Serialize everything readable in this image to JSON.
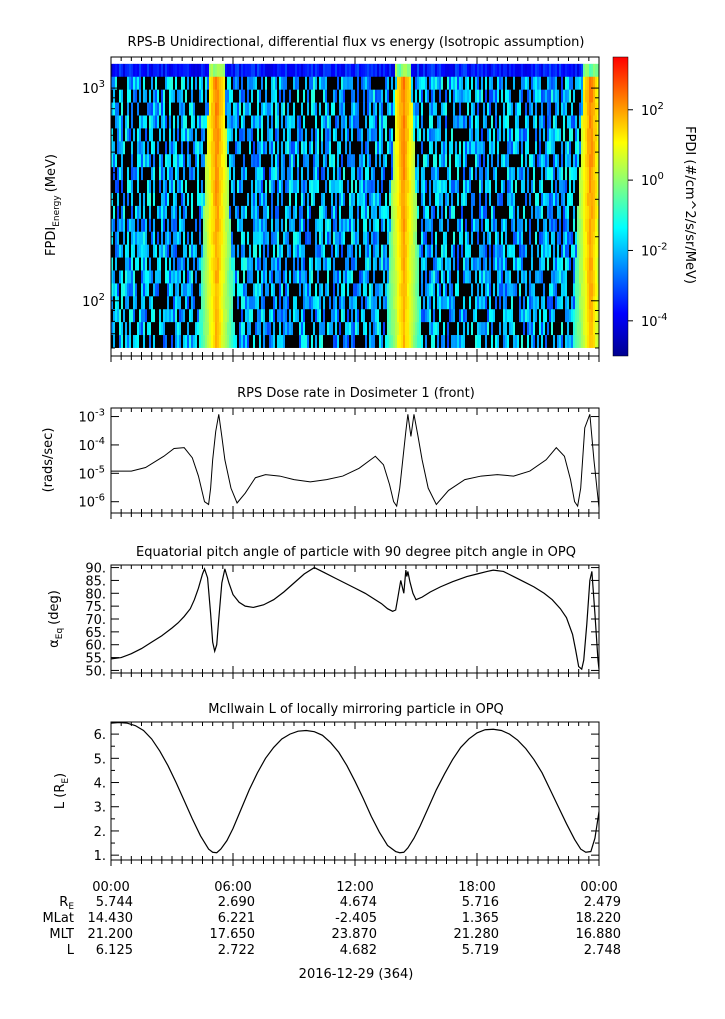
{
  "chart_data": [
    {
      "type": "heatmap",
      "title": "RPS-B  Unidirectional, differential flux vs energy (Isotropic assumption)",
      "ylabel_main": "FPDI",
      "ylabel_sub": "Energy",
      "ylabel_unit": "(MeV)",
      "ylim": [
        55,
        1400
      ],
      "yscale": "log",
      "yticks": [
        {
          "base": "10",
          "exp": "3",
          "value": 1000
        },
        {
          "base": "10",
          "exp": "2",
          "value": 100
        }
      ],
      "xlim_hours": [
        0,
        24
      ],
      "bright_bands_hours": [
        5.2,
        14.4,
        23.6
      ],
      "colorbar": {
        "label": "FPDI (#/cm^2/s/sr/MeV)",
        "range_log10": [
          -5,
          3.5
        ],
        "ticks": [
          {
            "base": "10",
            "exp": "2",
            "value": 2
          },
          {
            "base": "10",
            "exp": "0",
            "value": 0
          },
          {
            "base": "10",
            "exp": "-2",
            "value": -2
          },
          {
            "base": "10",
            "exp": "-4",
            "value": -4
          }
        ],
        "colors": [
          "#00008f",
          "#0000ff",
          "#0080ff",
          "#00ffff",
          "#80ff80",
          "#ffff00",
          "#ff8000",
          "#ff0000"
        ]
      }
    },
    {
      "type": "line",
      "title": "RPS  Dose rate in Dosimeter 1 (front)",
      "ylabel": "(rads/sec)",
      "yscale": "log",
      "ylim": [
        4e-07,
        0.002
      ],
      "yticks": [
        {
          "base": "10",
          "exp": "-3",
          "value": 0.001
        },
        {
          "base": "10",
          "exp": "-4",
          "value": 0.0001
        },
        {
          "base": "10",
          "exp": "-5",
          "value": 1e-05
        },
        {
          "base": "10",
          "exp": "-6",
          "value": 1e-06
        }
      ],
      "x": [
        0,
        1.0,
        1.7,
        2.6,
        3.1,
        3.6,
        4.0,
        4.3,
        4.6,
        4.8,
        4.9,
        5.0,
        5.15,
        5.3,
        5.45,
        5.6,
        5.9,
        6.2,
        6.6,
        7.1,
        7.6,
        8.3,
        9.0,
        9.8,
        10.6,
        11.4,
        12.2,
        13.0,
        13.4,
        13.7,
        13.9,
        14.05,
        14.2,
        14.35,
        14.5,
        14.6,
        14.75,
        14.9,
        15.1,
        15.3,
        15.6,
        16.0,
        16.6,
        17.4,
        18.2,
        19.0,
        19.8,
        20.6,
        21.4,
        21.9,
        22.3,
        22.6,
        22.8,
        22.95,
        23.1,
        23.3,
        23.55,
        23.75,
        24.0
      ],
      "y": [
        1.2e-05,
        1.2e-05,
        1.6e-05,
        4e-05,
        7.5e-05,
        8e-05,
        3.5e-05,
        8e-06,
        1e-06,
        8e-07,
        3e-06,
        3e-05,
        0.0003,
        0.0012,
        0.0002,
        3e-05,
        3e-06,
        9e-07,
        2e-06,
        7e-06,
        9e-06,
        8e-06,
        6e-06,
        5e-06,
        6e-06,
        8e-06,
        1.5e-05,
        4e-05,
        2e-05,
        4e-06,
        1e-06,
        7e-07,
        3e-06,
        3e-05,
        0.0003,
        0.0012,
        0.0002,
        0.0012,
        0.0002,
        3e-05,
        3e-06,
        8e-07,
        2.5e-06,
        6e-06,
        8e-06,
        9e-06,
        8e-06,
        1.2e-05,
        3e-05,
        8e-05,
        4e-05,
        6e-06,
        1e-06,
        7e-07,
        3e-06,
        0.0004,
        0.0012,
        3e-05,
        6e-07
      ]
    },
    {
      "type": "line",
      "title": "Equatorial pitch angle of particle with 90 degree pitch angle in OPQ",
      "ylabel_main": "α",
      "ylabel_sub": "Eq",
      "ylabel_unit": "(deg)",
      "ylim": [
        49,
        91
      ],
      "yticks": [
        "90.",
        "85.",
        "80.",
        "75.",
        "70.",
        "65.",
        "60.",
        "55.",
        "50."
      ],
      "ytick_values": [
        90,
        85,
        80,
        75,
        70,
        65,
        60,
        55,
        50
      ],
      "x": [
        0,
        0.5,
        1.0,
        1.5,
        2.0,
        2.5,
        3.0,
        3.3,
        3.6,
        3.9,
        4.1,
        4.3,
        4.5,
        4.6,
        4.75,
        4.9,
        5.0,
        5.1,
        5.2,
        5.3,
        5.45,
        5.6,
        5.8,
        6.0,
        6.3,
        6.6,
        7.0,
        7.5,
        8.0,
        8.5,
        9.0,
        9.5,
        10.0,
        10.5,
        11.0,
        11.5,
        12.0,
        12.5,
        13.0,
        13.3,
        13.6,
        13.85,
        14.0,
        14.1,
        14.25,
        14.4,
        14.5,
        14.55,
        14.6,
        14.7,
        14.85,
        15.0,
        15.3,
        15.7,
        16.2,
        16.8,
        17.5,
        18.0,
        18.5,
        18.8,
        19.3,
        19.8,
        20.3,
        20.8,
        21.3,
        21.7,
        22.1,
        22.4,
        22.7,
        22.85,
        23.0,
        23.15,
        23.25,
        23.4,
        23.55,
        23.65,
        23.8,
        23.95,
        24.0
      ],
      "y": [
        54.5,
        55.0,
        56.5,
        58.5,
        61.0,
        63.5,
        66.5,
        68.5,
        71.0,
        74.0,
        77.5,
        82.0,
        87.5,
        89.5,
        86.0,
        72.0,
        61.0,
        57.5,
        60.0,
        70.0,
        84.0,
        89.5,
        84.0,
        79.5,
        76.5,
        75.0,
        74.5,
        75.5,
        77.5,
        80.5,
        84.0,
        87.5,
        90.0,
        88.0,
        86.0,
        84.0,
        82.0,
        80.0,
        77.5,
        76.0,
        74.0,
        73.0,
        73.5,
        78.0,
        85.0,
        80.0,
        89.0,
        86.5,
        88.5,
        84.5,
        80.0,
        77.5,
        78.5,
        80.5,
        82.5,
        84.5,
        86.5,
        87.5,
        88.5,
        89.0,
        88.5,
        86.5,
        84.5,
        82.5,
        80.0,
        77.5,
        74.0,
        70.5,
        64.0,
        58.0,
        51.5,
        50.5,
        54.0,
        68.0,
        85.0,
        88.5,
        72.0,
        54.0,
        50.5
      ]
    },
    {
      "type": "line",
      "title": "McIlwain L of locally mirroring particle in OPQ",
      "ylabel_main": "L (R",
      "ylabel_sub": "E",
      "ylabel_unit": ")",
      "ylim": [
        0.8,
        6.5
      ],
      "yticks": [
        "6.",
        "5.",
        "4.",
        "3.",
        "2.",
        "1."
      ],
      "ytick_values": [
        6,
        5,
        4,
        3,
        2,
        1
      ],
      "x": [
        0,
        0.4,
        0.8,
        1.2,
        1.6,
        2.0,
        2.4,
        2.8,
        3.2,
        3.6,
        4.0,
        4.4,
        4.8,
        5.0,
        5.2,
        5.4,
        5.7,
        6.0,
        6.4,
        6.8,
        7.2,
        7.6,
        8.0,
        8.4,
        8.8,
        9.2,
        9.6,
        10.0,
        10.4,
        10.8,
        11.2,
        11.6,
        12.0,
        12.4,
        12.8,
        13.2,
        13.6,
        14.0,
        14.2,
        14.4,
        14.6,
        14.9,
        15.2,
        15.6,
        16.0,
        16.4,
        16.8,
        17.2,
        17.6,
        18.0,
        18.4,
        18.8,
        19.2,
        19.6,
        20.0,
        20.4,
        20.8,
        21.2,
        21.6,
        22.0,
        22.4,
        22.8,
        23.1,
        23.35,
        23.6,
        23.8,
        24.0
      ],
      "y": [
        6.45,
        6.48,
        6.45,
        6.35,
        6.15,
        5.8,
        5.3,
        4.7,
        4.0,
        3.25,
        2.5,
        1.8,
        1.25,
        1.12,
        1.1,
        1.25,
        1.6,
        2.1,
        2.9,
        3.7,
        4.4,
        5.0,
        5.45,
        5.8,
        6.0,
        6.12,
        6.15,
        6.1,
        5.95,
        5.65,
        5.25,
        4.7,
        4.05,
        3.35,
        2.6,
        1.95,
        1.4,
        1.15,
        1.1,
        1.12,
        1.3,
        1.7,
        2.2,
        2.95,
        3.7,
        4.35,
        4.95,
        5.45,
        5.8,
        6.05,
        6.18,
        6.2,
        6.15,
        6.0,
        5.75,
        5.4,
        4.95,
        4.4,
        3.7,
        3.0,
        2.3,
        1.65,
        1.25,
        1.12,
        1.15,
        1.7,
        2.8
      ]
    }
  ],
  "x_axis": {
    "labels": [
      "00:00",
      "06:00",
      "12:00",
      "18:00",
      "00:00"
    ],
    "label_hours": [
      0,
      6,
      12,
      18,
      24
    ],
    "row_names": [
      "R",
      "MLat",
      "MLT",
      "L"
    ],
    "row_name_sub": [
      "E",
      "",
      "",
      ""
    ],
    "rows": [
      [
        "5.744",
        "2.690",
        "4.674",
        "5.716",
        "2.479"
      ],
      [
        "14.430",
        "6.221",
        "-2.405",
        "1.365",
        "18.220"
      ],
      [
        "21.200",
        "17.650",
        "23.870",
        "21.280",
        "16.880"
      ],
      [
        "6.125",
        "2.722",
        "4.682",
        "5.719",
        "2.748"
      ]
    ],
    "date_label": "2016-12-29 (364)"
  }
}
